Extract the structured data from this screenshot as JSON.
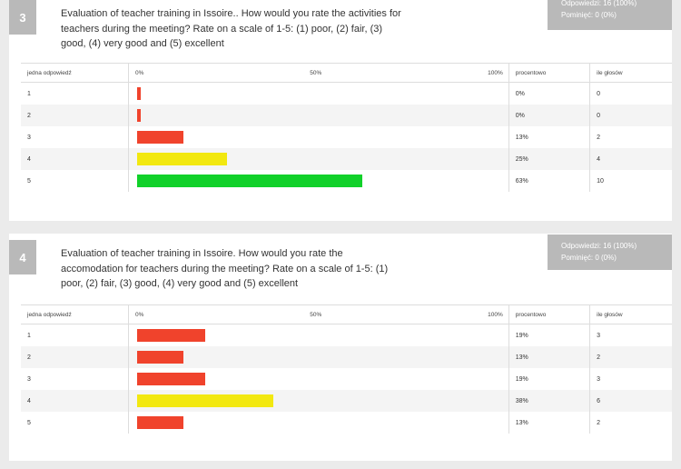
{
  "questions": [
    {
      "number": "3",
      "text": "Evaluation of teacher training in Issoire.. How would you rate the activities for teachers during the meeting? Rate on a scale of 1-5: (1) poor, (2) fair, (3) good, (4) very good and (5) excellent",
      "answered": "Odpowiedzi: 16 (100%)",
      "skipped": "Pominięć: 0 (0%)",
      "headers": {
        "answer": "jedna odpowiedź",
        "scale_0": "0%",
        "scale_50": "50%",
        "scale_100": "100%",
        "percent": "procentowo",
        "votes": "ile głosów"
      },
      "rows": [
        {
          "label": "1",
          "percent": "0%",
          "votes": "0",
          "fraction": 0.01,
          "color": "#f0432c"
        },
        {
          "label": "2",
          "percent": "0%",
          "votes": "0",
          "fraction": 0.01,
          "color": "#f0432c"
        },
        {
          "label": "3",
          "percent": "13%",
          "votes": "2",
          "fraction": 0.13,
          "color": "#f0432c"
        },
        {
          "label": "4",
          "percent": "25%",
          "votes": "4",
          "fraction": 0.25,
          "color": "#f2e810"
        },
        {
          "label": "5",
          "percent": "63%",
          "votes": "10",
          "fraction": 0.63,
          "color": "#11d12a"
        }
      ]
    },
    {
      "number": "4",
      "text": "Evaluation of teacher training in Issoire. How would you rate the accomodation for teachers during the meeting? Rate on a scale of 1-5: (1) poor, (2) fair, (3) good, (4) very good and (5) excellent",
      "answered": "Odpowiedzi: 16 (100%)",
      "skipped": "Pominięć: 0 (0%)",
      "headers": {
        "answer": "jedna odpowiedź",
        "scale_0": "0%",
        "scale_50": "50%",
        "scale_100": "100%",
        "percent": "procentowo",
        "votes": "ile głosów"
      },
      "rows": [
        {
          "label": "1",
          "percent": "19%",
          "votes": "3",
          "fraction": 0.19,
          "color": "#f0432c"
        },
        {
          "label": "2",
          "percent": "13%",
          "votes": "2",
          "fraction": 0.13,
          "color": "#f0432c"
        },
        {
          "label": "3",
          "percent": "19%",
          "votes": "3",
          "fraction": 0.19,
          "color": "#f0432c"
        },
        {
          "label": "4",
          "percent": "38%",
          "votes": "6",
          "fraction": 0.38,
          "color": "#f2e810"
        },
        {
          "label": "5",
          "percent": "13%",
          "votes": "2",
          "fraction": 0.13,
          "color": "#f0432c"
        }
      ]
    }
  ]
}
